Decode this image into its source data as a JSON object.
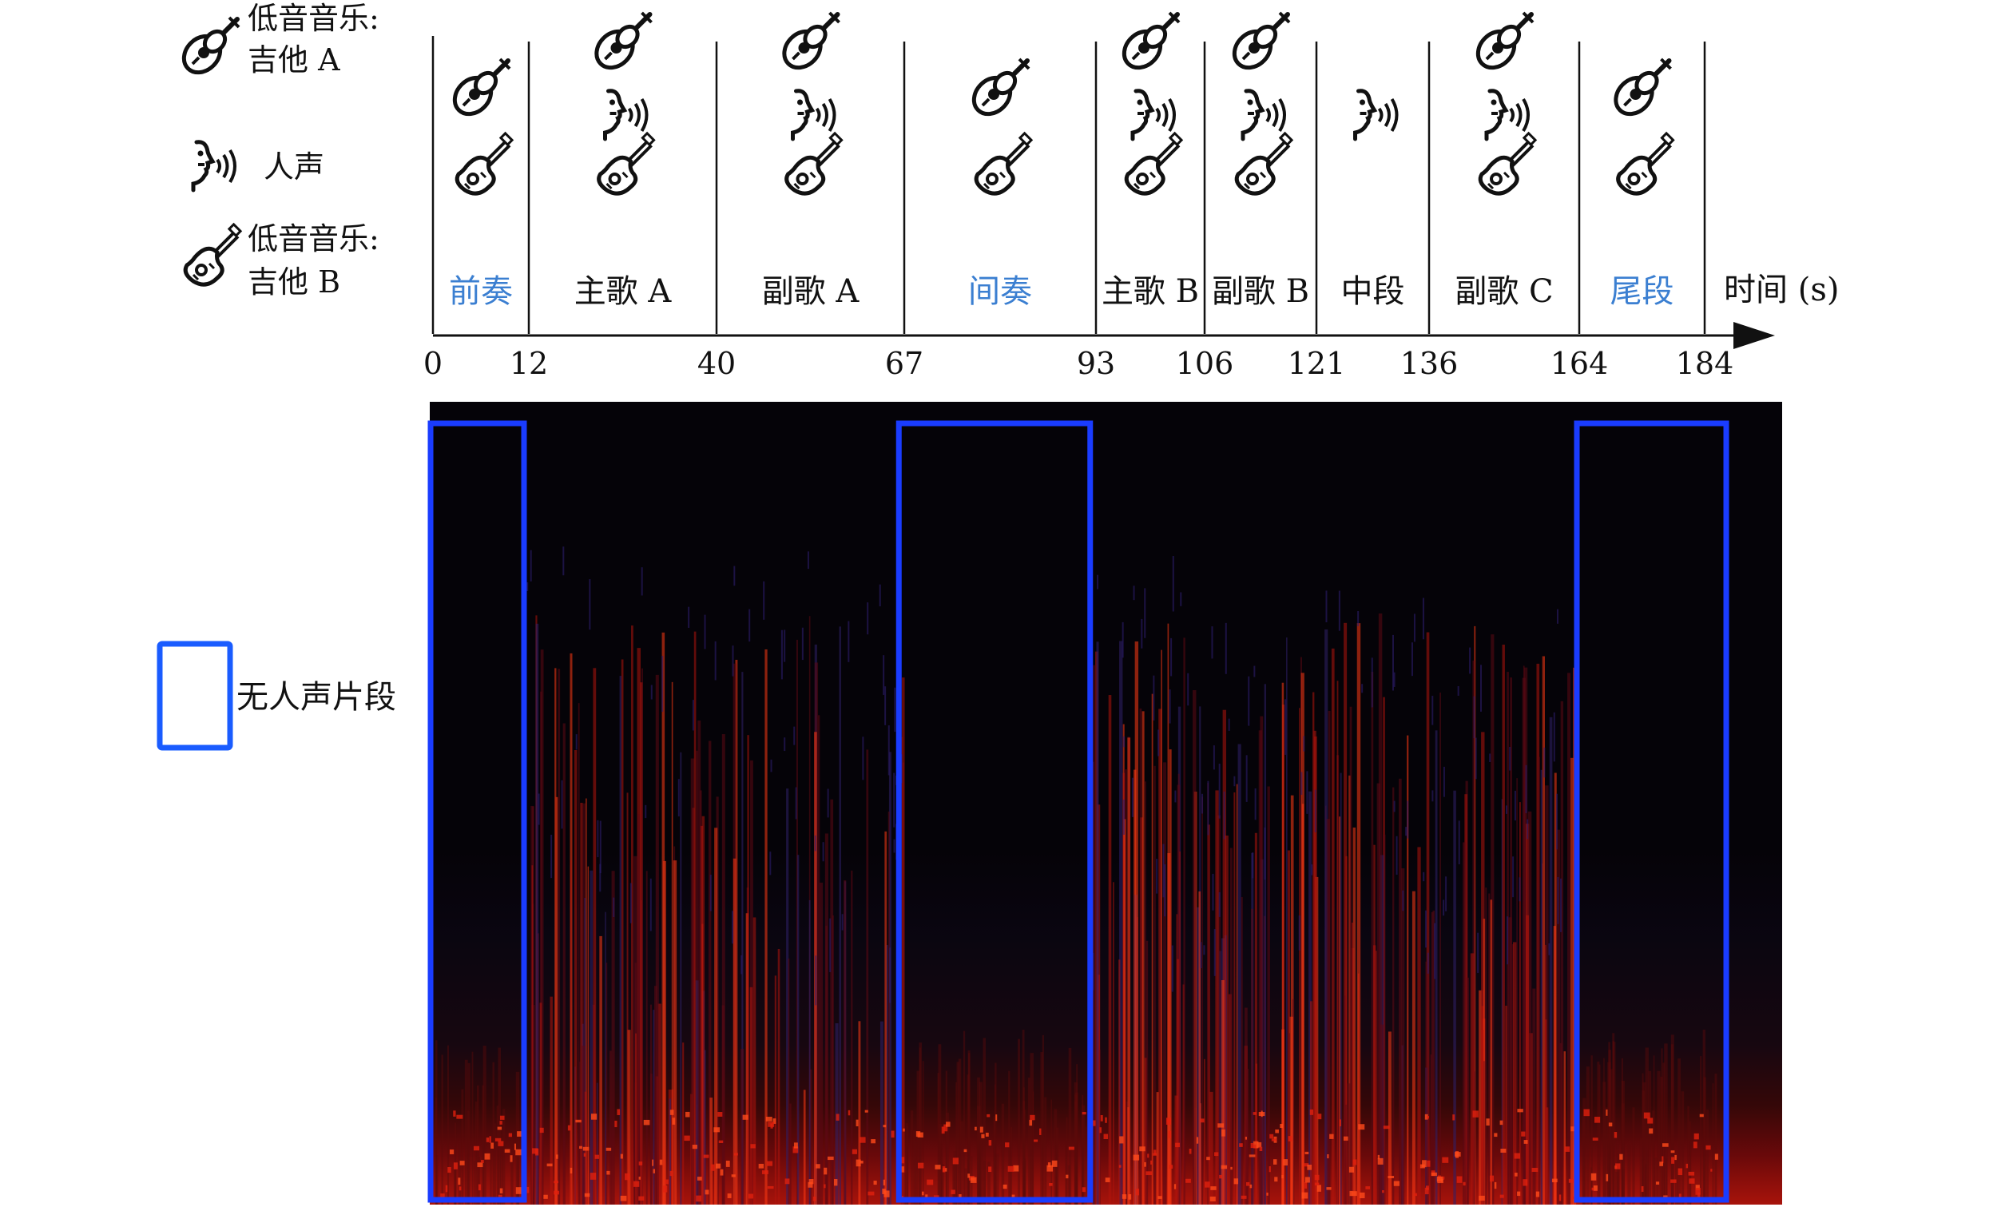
{
  "legend": {
    "guitar_a_line1": "低音音乐:",
    "guitar_a_line2": "吉他 A",
    "voice": "人声",
    "guitar_b_line1": "低音音乐:",
    "guitar_b_line2": "吉他 B",
    "no_voice": "无人声片段",
    "icons": [
      "acoustic-guitar-icon",
      "singing-voice-icon",
      "electric-guitar-icon"
    ]
  },
  "timeline": {
    "axis_label": "时间 (s)",
    "ticks": [
      "0",
      "12",
      "40",
      "67",
      "93",
      "106",
      "121",
      "136",
      "164",
      "184"
    ],
    "tick_values": [
      0,
      12,
      40,
      67,
      93,
      106,
      121,
      136,
      164,
      184
    ],
    "segments": [
      {
        "label": "前奏",
        "start": 0,
        "end": 12,
        "guitar_a": true,
        "voice": false,
        "guitar_b": true,
        "highlight": true
      },
      {
        "label": "主歌 A",
        "start": 12,
        "end": 40,
        "guitar_a": true,
        "voice": true,
        "guitar_b": true,
        "highlight": false
      },
      {
        "label": "副歌 A",
        "start": 40,
        "end": 67,
        "guitar_a": true,
        "voice": true,
        "guitar_b": true,
        "highlight": false
      },
      {
        "label": "间奏",
        "start": 67,
        "end": 93,
        "guitar_a": true,
        "voice": false,
        "guitar_b": true,
        "highlight": true
      },
      {
        "label": "主歌 B",
        "start": 93,
        "end": 106,
        "guitar_a": true,
        "voice": true,
        "guitar_b": true,
        "highlight": false
      },
      {
        "label": "副歌 B",
        "start": 106,
        "end": 121,
        "guitar_a": true,
        "voice": true,
        "guitar_b": true,
        "highlight": false
      },
      {
        "label": "中段",
        "start": 121,
        "end": 136,
        "guitar_a": false,
        "voice": true,
        "guitar_b": false,
        "highlight": false
      },
      {
        "label": "副歌 C",
        "start": 136,
        "end": 164,
        "guitar_a": true,
        "voice": true,
        "guitar_b": true,
        "highlight": false
      },
      {
        "label": "尾段",
        "start": 164,
        "end": 184,
        "guitar_a": true,
        "voice": false,
        "guitar_b": true,
        "highlight": true
      }
    ]
  },
  "spectrogram": {
    "no_voice_ranges": [
      [
        0,
        12
      ],
      [
        67,
        93
      ],
      [
        164,
        184
      ]
    ]
  },
  "colors": {
    "highlight_text": "#3b7fd1",
    "box": "#1a3cff",
    "spec_bg": "#050308",
    "spec_hot": "#ff2a10",
    "spec_dark_red": "#7a0a0a",
    "spec_purple": "#2a1a5a"
  }
}
